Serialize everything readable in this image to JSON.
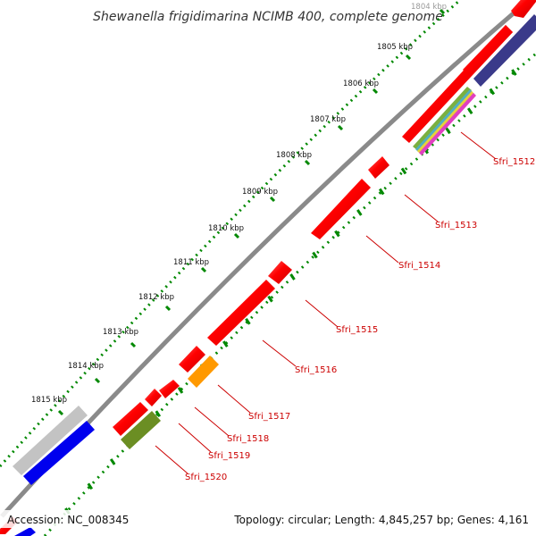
{
  "title": "Shewanella frigidimarina NCIMB 400, complete genome",
  "ruler": {
    "labels": [
      "1804 kbp",
      "1805 kbp",
      "1806 kbp",
      "1807 kbp",
      "1808 kbp",
      "1809 kbp",
      "1810 kbp",
      "1811 kbp",
      "1812 kbp",
      "1813 kbp",
      "1814 kbp",
      "1815 kbp"
    ]
  },
  "genes": [
    {
      "name": "Sfri_1512"
    },
    {
      "name": "Sfri_1513"
    },
    {
      "name": "Sfri_1514"
    },
    {
      "name": "Sfri_1515"
    },
    {
      "name": "Sfri_1516"
    },
    {
      "name": "Sfri_1517"
    },
    {
      "name": "Sfri_1518"
    },
    {
      "name": "Sfri_1519"
    },
    {
      "name": "Sfri_1520"
    }
  ],
  "colors": {
    "gene_red": "#ff0000",
    "gene_orange": "#ff9900",
    "gene_olive": "#6b8e23",
    "gene_blue": "#0000ff",
    "gene_navy": "#333388",
    "gene_gray": "#c0c0c0",
    "label_red": "#cc0000",
    "backbone": "#888888",
    "tick_green": "#008800"
  },
  "footer": {
    "accession": "Accession: NC_008345",
    "topology": "Topology: circular; Length: 4,845,257 bp; Genes: 4,161"
  }
}
